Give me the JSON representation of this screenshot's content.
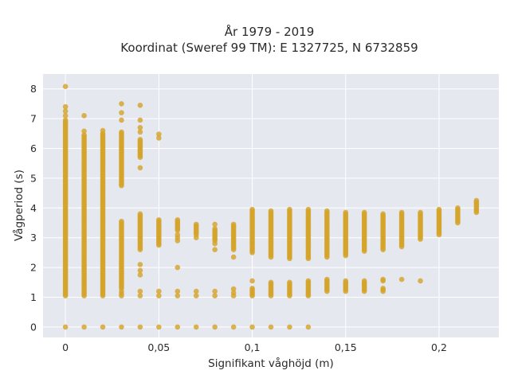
{
  "chart_data": {
    "type": "scatter",
    "title": "År 1979 - 2019",
    "subtitle": "Koordinat (Sweref 99 TM): E 1327725, N 6732859",
    "xlabel": "Signifikant våghöjd (m)",
    "ylabel": "Vågperiod (s)",
    "xlim": [
      -0.012,
      0.232
    ],
    "ylim": [
      -0.35,
      8.5
    ],
    "x_ticks": [
      0,
      0.05,
      0.1,
      0.15,
      0.2
    ],
    "x_tick_labels": [
      "0",
      "0,05",
      "0,1",
      "0,15",
      "0,2"
    ],
    "y_ticks": [
      0,
      1,
      2,
      3,
      4,
      5,
      6,
      7,
      8
    ],
    "y_tick_labels": [
      "0",
      "1",
      "2",
      "3",
      "4",
      "5",
      "6",
      "7",
      "8"
    ],
    "grid": true,
    "colors": {
      "marker": "#d4a42a",
      "plot_bg": "#e6e8f0",
      "grid": "#ffffff"
    },
    "clusters": [
      {
        "x": 0,
        "ranges": [
          [
            1.05,
            6.95
          ]
        ],
        "singles": [
          0,
          7.1,
          7.25,
          7.4,
          8.08
        ]
      },
      {
        "x": 0.01,
        "ranges": [
          [
            1.05,
            6.45
          ]
        ],
        "singles": [
          0,
          6.58,
          7.1
        ]
      },
      {
        "x": 0.02,
        "ranges": [
          [
            1.05,
            6.5
          ]
        ],
        "singles": [
          0,
          6.6
        ]
      },
      {
        "x": 0.03,
        "ranges": [
          [
            1.3,
            3.55
          ],
          [
            4.75,
            6.55
          ]
        ],
        "singles": [
          0,
          1.05,
          1.12,
          1.2,
          6.95,
          7.2,
          7.5
        ]
      },
      {
        "x": 0.04,
        "ranges": [
          [
            2.6,
            3.8
          ],
          [
            5.7,
            6.3
          ]
        ],
        "singles": [
          0,
          1.05,
          1.2,
          1.75,
          1.9,
          2.1,
          5.35,
          6.55,
          6.7,
          6.95,
          7.45
        ]
      },
      {
        "x": 0.05,
        "ranges": [
          [
            2.8,
            3.6
          ]
        ],
        "singles": [
          0,
          1.05,
          1.2,
          6.35,
          6.48,
          2.75
        ]
      },
      {
        "x": 0.06,
        "ranges": [
          [
            3.25,
            3.6
          ]
        ],
        "singles": [
          0,
          1.05,
          1.2,
          2.0,
          2.9,
          3.0,
          3.1
        ]
      },
      {
        "x": 0.07,
        "ranges": [
          [
            3.1,
            3.45
          ]
        ],
        "singles": [
          0,
          1.05,
          1.2,
          3.0
        ]
      },
      {
        "x": 0.08,
        "ranges": [
          [
            2.9,
            3.3
          ]
        ],
        "singles": [
          0,
          1.05,
          1.2,
          2.6,
          2.8,
          3.45
        ]
      },
      {
        "x": 0.09,
        "ranges": [
          [
            2.6,
            3.45
          ]
        ],
        "singles": [
          0,
          1.05,
          1.15,
          1.28,
          2.35
        ]
      },
      {
        "x": 0.1,
        "ranges": [
          [
            1.05,
            1.3
          ],
          [
            2.5,
            3.95
          ]
        ],
        "singles": [
          0,
          1.55
        ]
      },
      {
        "x": 0.11,
        "ranges": [
          [
            1.05,
            1.5
          ],
          [
            2.35,
            3.9
          ]
        ],
        "singles": [
          0
        ]
      },
      {
        "x": 0.12,
        "ranges": [
          [
            1.05,
            1.5
          ],
          [
            2.3,
            3.95
          ]
        ],
        "singles": [
          0
        ]
      },
      {
        "x": 0.13,
        "ranges": [
          [
            1.05,
            1.55
          ],
          [
            2.3,
            3.95
          ]
        ],
        "singles": [
          0
        ]
      },
      {
        "x": 0.14,
        "ranges": [
          [
            1.2,
            1.6
          ],
          [
            2.35,
            3.9
          ]
        ],
        "singles": []
      },
      {
        "x": 0.15,
        "ranges": [
          [
            1.2,
            1.55
          ],
          [
            2.4,
            3.85
          ]
        ],
        "singles": []
      },
      {
        "x": 0.16,
        "ranges": [
          [
            1.2,
            1.55
          ],
          [
            2.55,
            3.85
          ]
        ],
        "singles": []
      },
      {
        "x": 0.17,
        "ranges": [
          [
            1.2,
            1.3
          ],
          [
            2.6,
            3.8
          ]
        ],
        "singles": [
          1.55,
          1.6
        ]
      },
      {
        "x": 0.18,
        "ranges": [
          [
            2.7,
            3.85
          ]
        ],
        "singles": [
          1.6
        ]
      },
      {
        "x": 0.19,
        "ranges": [
          [
            2.95,
            3.85
          ]
        ],
        "singles": [
          1.55
        ]
      },
      {
        "x": 0.2,
        "ranges": [
          [
            3.1,
            3.95
          ]
        ],
        "singles": []
      },
      {
        "x": 0.21,
        "ranges": [
          [
            3.5,
            4.0
          ]
        ],
        "singles": []
      },
      {
        "x": 0.22,
        "ranges": [
          [
            3.85,
            4.25
          ]
        ],
        "singles": []
      }
    ]
  }
}
